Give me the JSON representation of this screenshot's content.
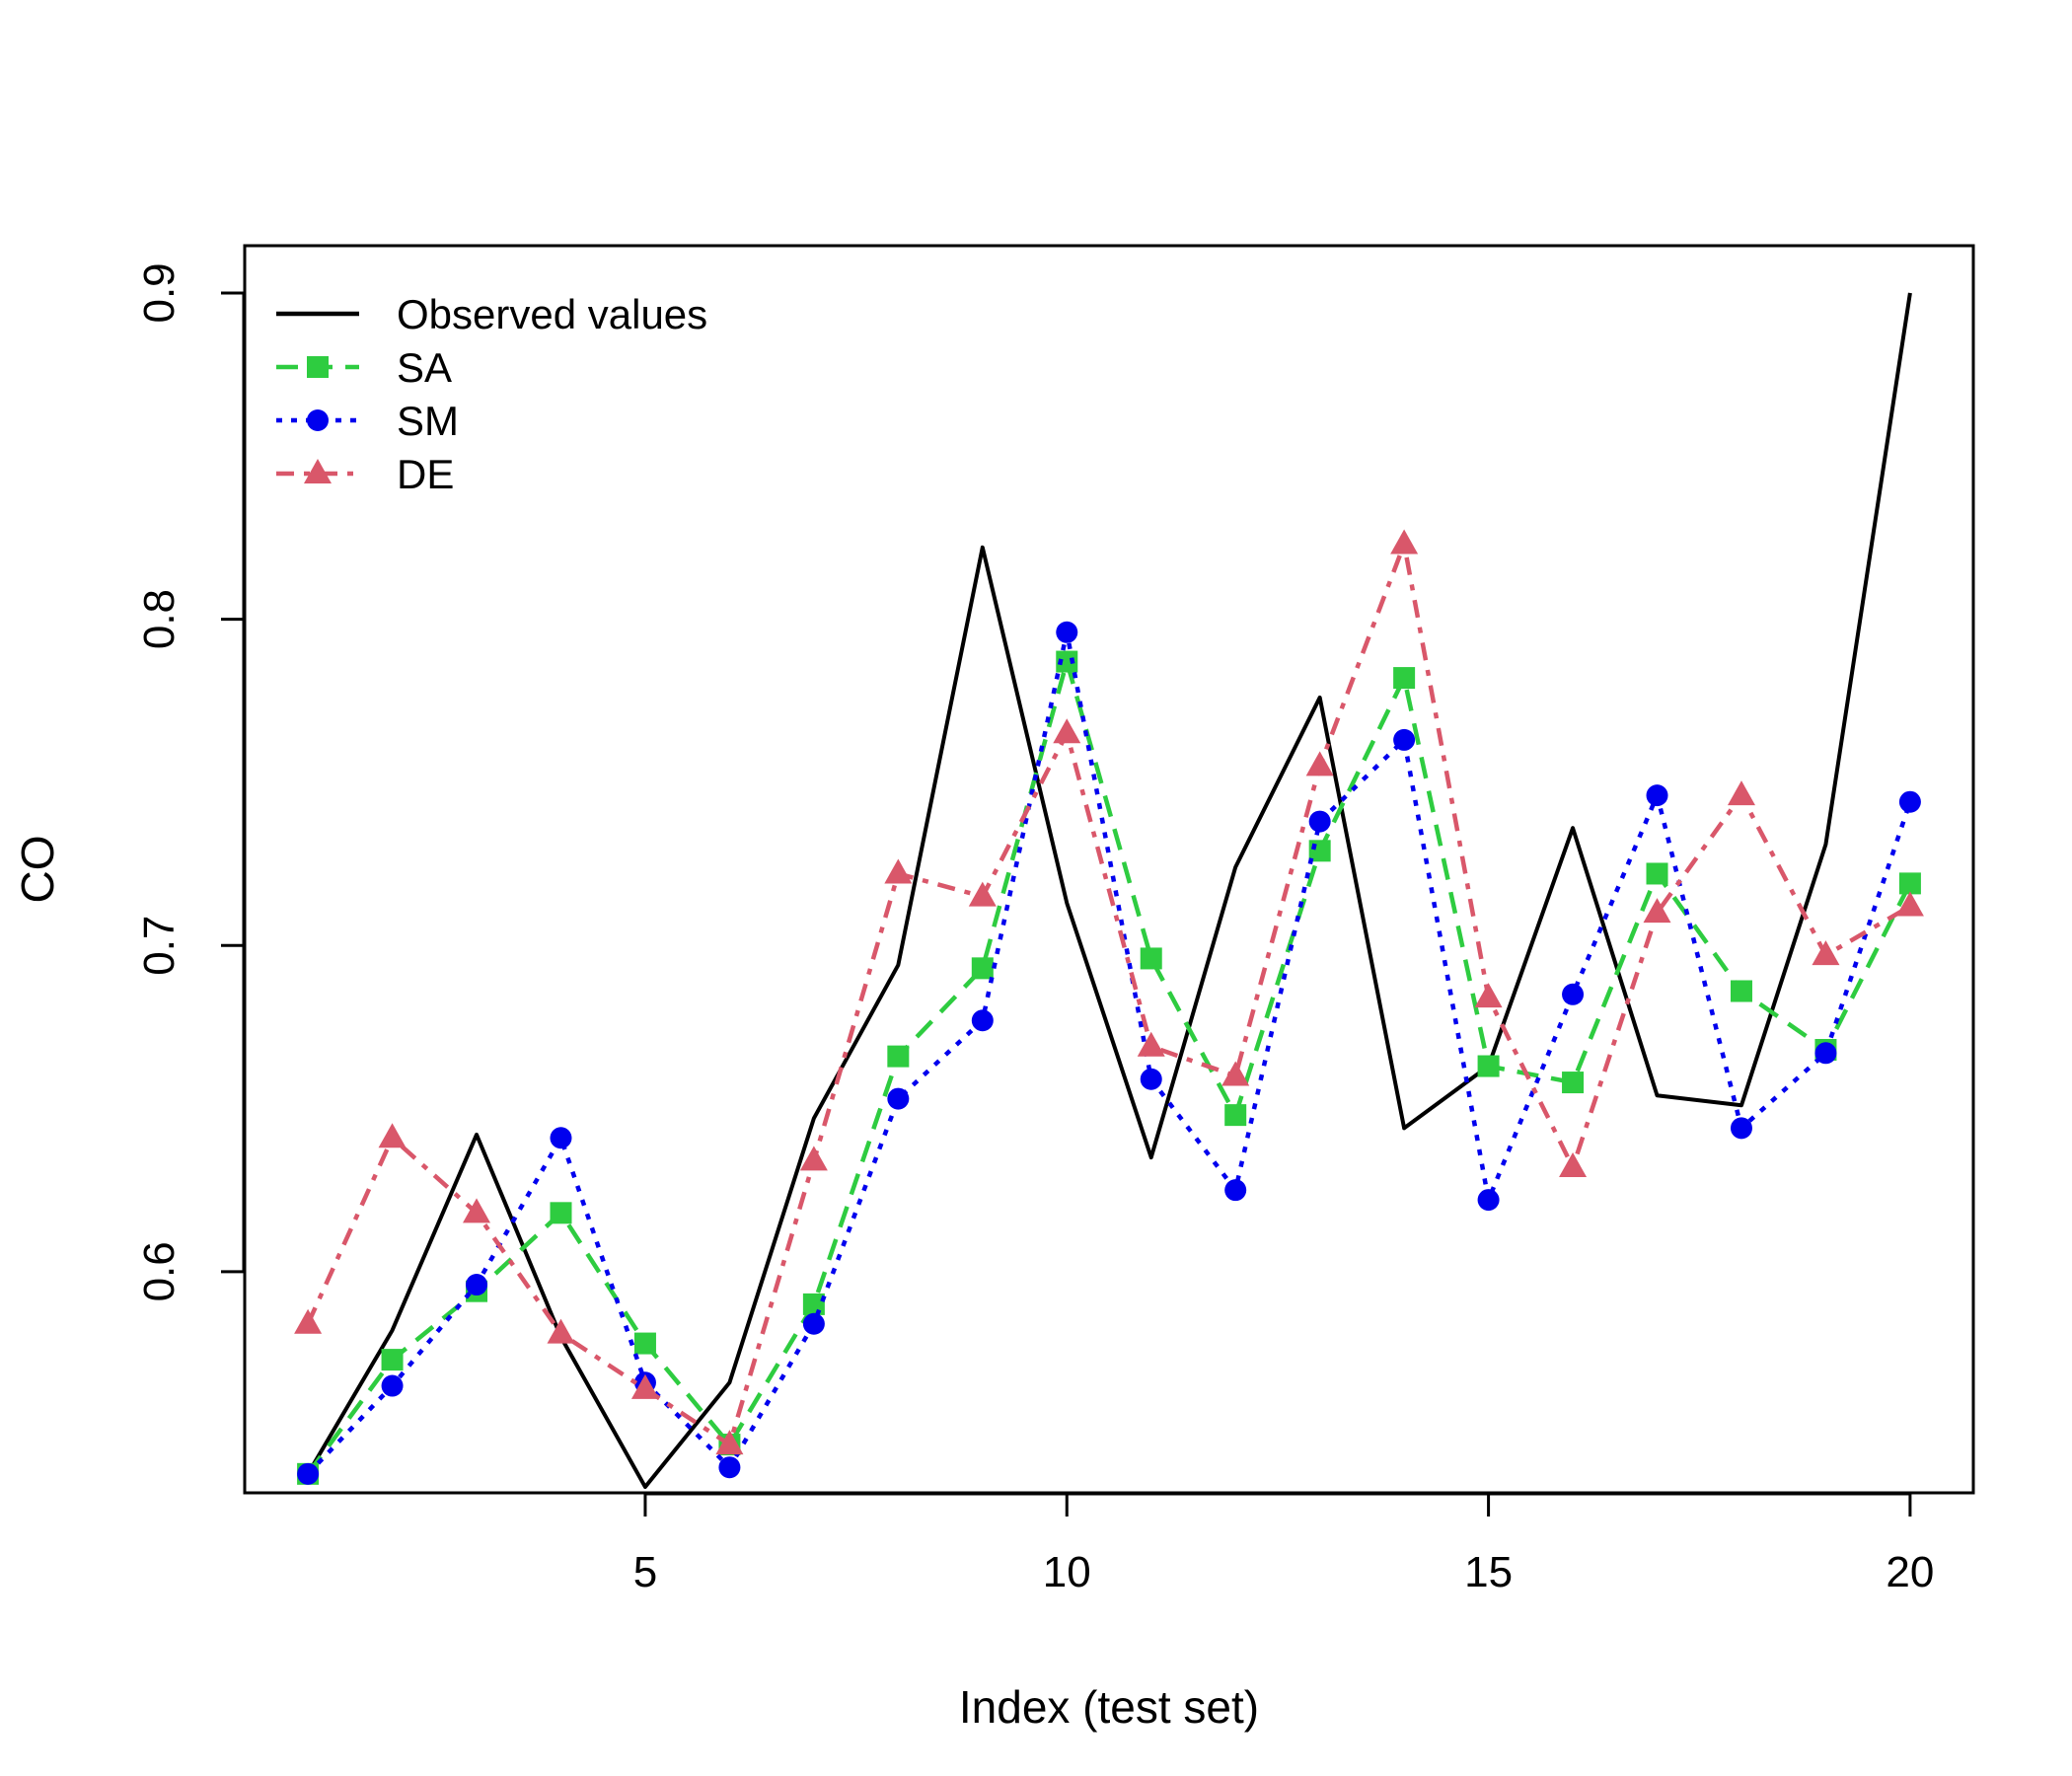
{
  "chart_data": {
    "type": "line",
    "title": "",
    "xlabel": "Index (test set)",
    "ylabel": "CO",
    "xlim": [
      0.25,
      20.75
    ],
    "ylim": [
      0.5322,
      0.9145
    ],
    "x_ticks": [
      5,
      10,
      15,
      20
    ],
    "y_ticks": [
      0.6,
      0.7,
      0.8,
      0.9
    ],
    "grid": false,
    "legend_position": "top-left",
    "x": [
      1,
      2,
      3,
      4,
      5,
      6,
      7,
      8,
      9,
      10,
      11,
      12,
      13,
      14,
      15,
      16,
      17,
      18,
      19,
      20
    ],
    "series": [
      {
        "name": "Observed values",
        "color": "#000000",
        "line": "solid",
        "marker": "none",
        "values": [
          0.538,
          0.582,
          0.642,
          0.58,
          0.534,
          0.566,
          0.647,
          0.694,
          0.822,
          0.713,
          0.635,
          0.724,
          0.776,
          0.644,
          0.663,
          0.736,
          0.654,
          0.651,
          0.731,
          0.9
        ]
      },
      {
        "name": "SA",
        "color": "#2ecc40",
        "line": "dashed",
        "marker": "square",
        "values": [
          0.538,
          0.573,
          0.594,
          0.618,
          0.578,
          0.547,
          0.59,
          0.666,
          0.693,
          0.787,
          0.696,
          0.648,
          0.729,
          0.782,
          0.663,
          0.658,
          0.722,
          0.686,
          0.668,
          0.719
        ]
      },
      {
        "name": "SM",
        "color": "#0000ee",
        "line": "dotted",
        "marker": "circle",
        "values": [
          0.538,
          0.565,
          0.596,
          0.641,
          0.566,
          0.54,
          0.584,
          0.653,
          0.677,
          0.796,
          0.659,
          0.625,
          0.738,
          0.763,
          0.622,
          0.685,
          0.746,
          0.644,
          0.667,
          0.744
        ]
      },
      {
        "name": "DE",
        "color": "#d9576a",
        "line": "dashdot",
        "marker": "triangle",
        "values": [
          0.584,
          0.641,
          0.618,
          0.581,
          0.564,
          0.547,
          0.634,
          0.722,
          0.715,
          0.765,
          0.669,
          0.66,
          0.755,
          0.823,
          0.684,
          0.632,
          0.71,
          0.746,
          0.697,
          0.712
        ]
      }
    ]
  }
}
